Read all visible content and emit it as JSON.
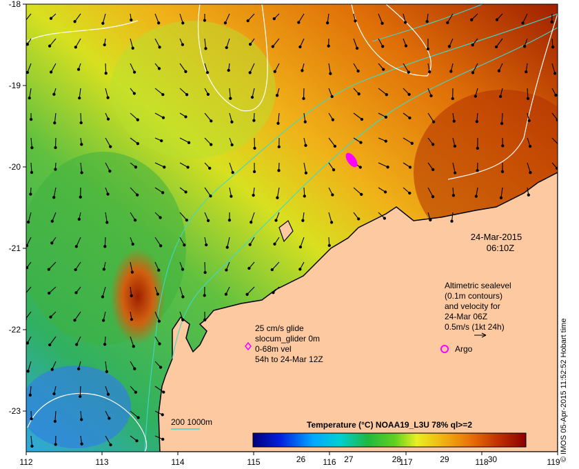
{
  "map": {
    "lon_ticks": [
      "112",
      "113",
      "114",
      "115",
      "116",
      "117",
      "118",
      "119"
    ],
    "lat_ticks": [
      "-18",
      "-19",
      "-20",
      "-21",
      "-22",
      "-23"
    ]
  },
  "timestamp": {
    "date": "24-Mar-2015",
    "time": "06:10Z"
  },
  "altimetry_note": {
    "line1": "Altimetric sealevel",
    "line2": "(0.1m contours)",
    "line3": "and velocity for",
    "line4": "24-Mar 06Z",
    "line5": "0.5m/s (1kt 24h)"
  },
  "glider_note": {
    "line1": "25 cm/s glide",
    "line2": "slocum_glider 0m",
    "line3": "0-68m vel",
    "line4": "54h to 24-Mar 12Z"
  },
  "argo_label": "Argo",
  "depth_legend": "200  1000m",
  "colorbar": {
    "title": "Temperature (°C) NOAA19_L3U 78% ql>=2",
    "ticks": [
      "26",
      "27",
      "28",
      "29",
      "30"
    ],
    "range": [
      25.0,
      30.7
    ]
  },
  "credit": "© IMOS 05-Apr-2015 11:52:52 Hobart time",
  "colors": {
    "land": "#fcc9a1",
    "bathymetry": "#3fd8c8",
    "glider": "#ff00ff",
    "argo": "#ff00ff"
  }
}
